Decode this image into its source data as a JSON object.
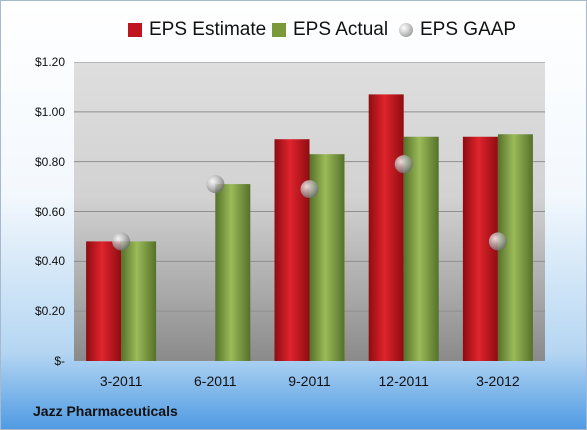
{
  "chart_data": {
    "type": "bar",
    "categories": [
      "3-2011",
      "6-2011",
      "9-2011",
      "12-2011",
      "3-2012"
    ],
    "series": [
      {
        "name": "EPS Estimate",
        "kind": "bar",
        "color": "#c0141e",
        "values": [
          0.48,
          null,
          0.89,
          1.07,
          0.9
        ]
      },
      {
        "name": "EPS Actual",
        "kind": "bar",
        "color": "#7a9a3a",
        "values": [
          0.48,
          0.71,
          0.83,
          0.9,
          0.91
        ]
      },
      {
        "name": "EPS GAAP",
        "kind": "marker",
        "color": "#a8a8a8",
        "values": [
          0.48,
          0.71,
          0.69,
          0.79,
          0.48
        ]
      }
    ],
    "ylim": [
      0,
      1.2
    ],
    "yticks": [
      0,
      0.2,
      0.4,
      0.6,
      0.8,
      1.0,
      1.2
    ],
    "ytick_labels": [
      "$-",
      "$0.20",
      "$0.40",
      "$0.60",
      "$0.80",
      "$1.00",
      "$1.20"
    ],
    "grid": true,
    "legend_position": "top",
    "company": "Jazz Pharmaceuticals"
  }
}
